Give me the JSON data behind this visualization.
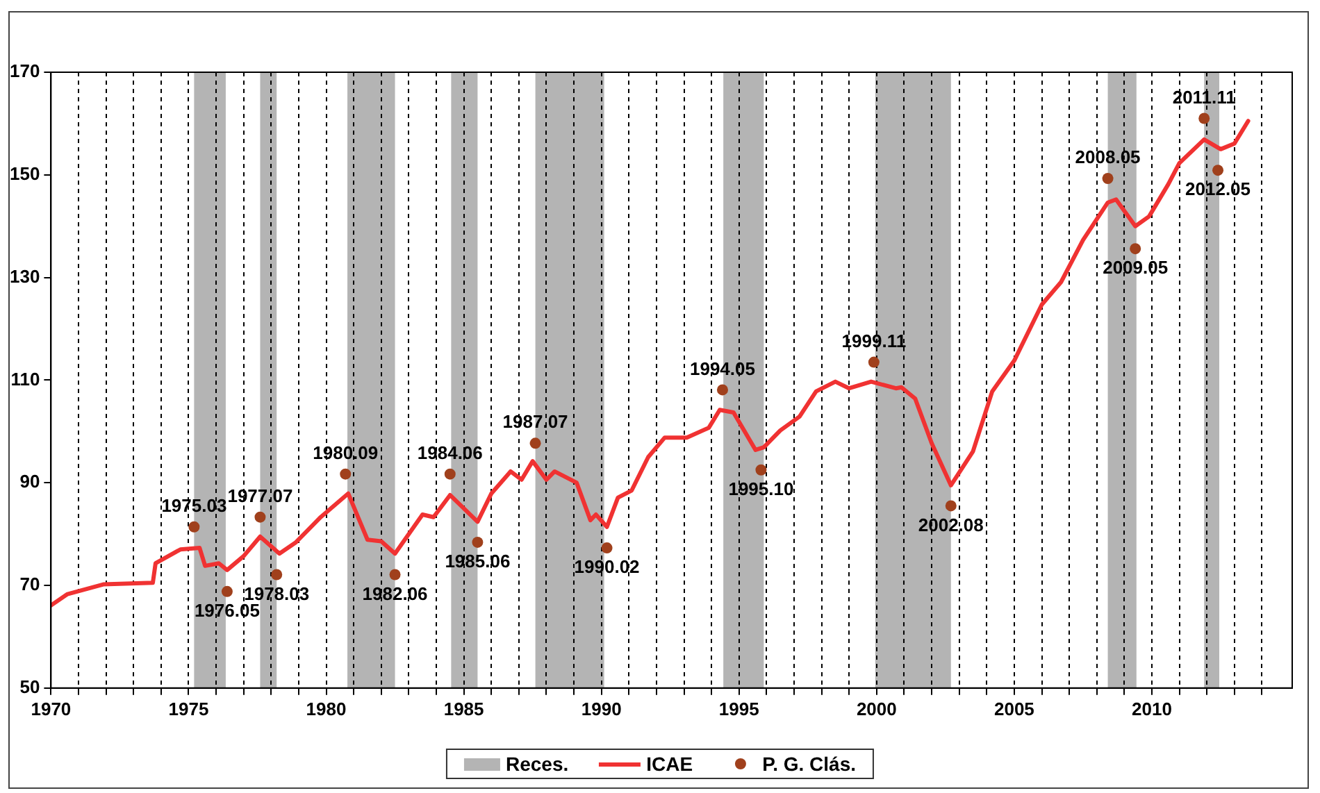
{
  "chart_data": {
    "type": "line",
    "x": [
      1970.0,
      1970.6,
      1971.9,
      1973.7,
      1973.8,
      1974.7,
      1975.4,
      1975.6,
      1976.1,
      1976.4,
      1977.0,
      1977.6,
      1978.3,
      1978.9,
      1979.8,
      1980.8,
      1981.5,
      1982.0,
      1982.5,
      1983.5,
      1983.9,
      1984.5,
      1985.5,
      1986.0,
      1986.7,
      1987.1,
      1987.5,
      1988.0,
      1988.3,
      1989.1,
      1989.6,
      1989.8,
      1990.2,
      1990.6,
      1991.1,
      1991.7,
      1992.3,
      1993.1,
      1993.9,
      1994.3,
      1994.8,
      1995.6,
      1995.9,
      1996.5,
      1997.2,
      1997.8,
      1998.5,
      1999.0,
      1999.8,
      2000.7,
      2000.9,
      2001.4,
      2002.0,
      2002.7,
      2003.5,
      2004.2,
      2005.0,
      2006.0,
      2006.7,
      2007.5,
      2008.4,
      2008.7,
      2009.4,
      2009.9,
      2010.6,
      2011.0,
      2011.9,
      2012.5,
      2013.0,
      2013.5
    ],
    "series": [
      {
        "name": "ICAE",
        "type": "line",
        "color": "#f03232",
        "marker": "none",
        "values": [
          66.1,
          68.3,
          70.2,
          70.5,
          74.3,
          77.0,
          77.3,
          73.8,
          74.3,
          73.0,
          75.7,
          79.5,
          76.2,
          78.4,
          83.3,
          87.9,
          78.9,
          78.6,
          76.2,
          83.8,
          83.3,
          87.6,
          82.4,
          87.9,
          92.2,
          90.6,
          94.2,
          90.6,
          92.2,
          90.0,
          82.7,
          83.8,
          81.4,
          87.1,
          88.5,
          95.0,
          98.8,
          98.8,
          100.7,
          104.2,
          103.7,
          96.4,
          96.9,
          100.2,
          102.9,
          107.8,
          109.7,
          108.4,
          109.7,
          108.4,
          108.6,
          106.4,
          97.7,
          89.5,
          96.1,
          107.8,
          113.8,
          124.7,
          129.1,
          137.3,
          144.6,
          145.2,
          140.0,
          141.9,
          148.2,
          152.3,
          156.9,
          155.0,
          156.1,
          160.5
        ]
      },
      {
        "name": "P. G. Clás.",
        "type": "scatter",
        "color": "#a0401c",
        "marker": "circle",
        "x": [
          1975.2,
          1976.4,
          1977.6,
          1978.2,
          1980.7,
          1982.5,
          1984.5,
          1985.5,
          1987.6,
          1990.2,
          1994.4,
          1995.8,
          1999.9,
          2002.7,
          2008.4,
          2009.4,
          2011.9,
          2012.4
        ],
        "values": [
          81.4,
          68.8,
          83.3,
          72.1,
          91.7,
          72.1,
          91.7,
          78.4,
          97.7,
          77.3,
          108.1,
          92.5,
          113.5,
          85.5,
          149.3,
          135.6,
          161.0,
          150.9
        ]
      }
    ],
    "annotations": [
      {
        "text": "1975.03",
        "x": 1975.2,
        "y": 81.4
      },
      {
        "text": "1976.05",
        "x": 1976.4,
        "y": 68.8
      },
      {
        "text": "1977.07",
        "x": 1977.6,
        "y": 83.3
      },
      {
        "text": "1978.03",
        "x": 1978.2,
        "y": 72.1
      },
      {
        "text": "1980.09",
        "x": 1980.7,
        "y": 91.7
      },
      {
        "text": "1982.06",
        "x": 1982.5,
        "y": 72.1
      },
      {
        "text": "1984.06",
        "x": 1984.5,
        "y": 91.7
      },
      {
        "text": "1985.06",
        "x": 1985.5,
        "y": 78.4
      },
      {
        "text": "1987.07",
        "x": 1987.6,
        "y": 97.7
      },
      {
        "text": "1990.02",
        "x": 1990.2,
        "y": 77.3
      },
      {
        "text": "1994.05",
        "x": 1994.4,
        "y": 108.1
      },
      {
        "text": "1995.10",
        "x": 1995.8,
        "y": 92.5
      },
      {
        "text": "1999.11",
        "x": 1999.9,
        "y": 113.5
      },
      {
        "text": "2002.08",
        "x": 2002.7,
        "y": 85.5
      },
      {
        "text": "2008.05",
        "x": 2008.4,
        "y": 149.3
      },
      {
        "text": "2009.05",
        "x": 2009.4,
        "y": 135.6
      },
      {
        "text": "2011.11",
        "x": 2011.9,
        "y": 161.0
      },
      {
        "text": "2012.05",
        "x": 2012.4,
        "y": 150.9
      }
    ],
    "bands": [
      {
        "axis": "x",
        "from": 1975.2,
        "to": 1976.35,
        "label": "Reces.",
        "color": "#b4b4b4"
      },
      {
        "axis": "x",
        "from": 1977.6,
        "to": 1978.2,
        "color": "#b4b4b4"
      },
      {
        "axis": "x",
        "from": 1980.77,
        "to": 1982.5,
        "color": "#b4b4b4"
      },
      {
        "axis": "x",
        "from": 1984.54,
        "to": 1985.5,
        "color": "#b4b4b4"
      },
      {
        "axis": "x",
        "from": 1987.6,
        "to": 1990.1,
        "color": "#b4b4b4"
      },
      {
        "axis": "x",
        "from": 1994.43,
        "to": 1995.9,
        "color": "#b4b4b4"
      },
      {
        "axis": "x",
        "from": 1999.95,
        "to": 2002.7,
        "color": "#b4b4b4"
      },
      {
        "axis": "x",
        "from": 2008.4,
        "to": 2009.44,
        "color": "#b4b4b4"
      },
      {
        "axis": "x",
        "from": 2011.9,
        "to": 2012.45,
        "color": "#b4b4b4"
      }
    ],
    "xlim": [
      1970,
      2015.1
    ],
    "xticks": [
      1970,
      {
        "value": 1971,
        "label": null
      },
      {
        "value": 1972,
        "label": null
      },
      {
        "value": 1973,
        "label": null
      },
      {
        "value": 1974,
        "label": null
      },
      1975,
      {
        "value": 1976,
        "label": null
      },
      {
        "value": 1977,
        "label": null
      },
      {
        "value": 1978,
        "label": null
      },
      {
        "value": 1979,
        "label": null
      },
      1980,
      {
        "value": 1981,
        "label": null
      },
      {
        "value": 1982,
        "label": null
      },
      {
        "value": 1983,
        "label": null
      },
      {
        "value": 1984,
        "label": null
      },
      1985,
      {
        "value": 1986,
        "label": null
      },
      {
        "value": 1987,
        "label": null
      },
      {
        "value": 1988,
        "label": null
      },
      {
        "value": 1989,
        "label": null
      },
      1990,
      {
        "value": 1991,
        "label": null
      },
      {
        "value": 1992,
        "label": null
      },
      {
        "value": 1993,
        "label": null
      },
      {
        "value": 1994,
        "label": null
      },
      1995,
      {
        "value": 1996,
        "label": null
      },
      {
        "value": 1997,
        "label": null
      },
      {
        "value": 1998,
        "label": null
      },
      {
        "value": 1999,
        "label": null
      },
      2000,
      {
        "value": 2001,
        "label": null
      },
      {
        "value": 2002,
        "label": null
      },
      {
        "value": 2003,
        "label": null
      },
      {
        "value": 2004,
        "label": null
      },
      2005,
      {
        "value": 2006,
        "label": null
      },
      {
        "value": 2007,
        "label": null
      },
      {
        "value": 2008,
        "label": null
      },
      {
        "value": 2009,
        "label": null
      },
      2010,
      {
        "value": 2011,
        "label": null
      },
      {
        "value": 2012,
        "label": null
      },
      {
        "value": 2013,
        "label": null
      },
      {
        "value": 2014,
        "label": null
      }
    ],
    "ylim": [
      50,
      170
    ],
    "yticks": [
      50,
      70,
      90,
      110,
      130,
      150,
      170
    ],
    "grid": "x",
    "line_style": "solid",
    "legend": "bottom"
  }
}
